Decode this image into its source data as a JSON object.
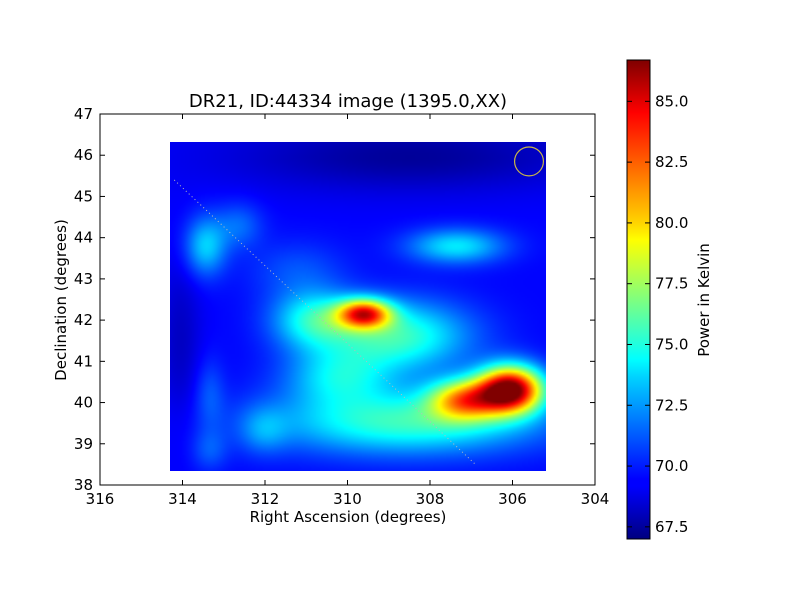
{
  "chart_data": {
    "type": "heatmap",
    "title": "DR21, ID:44334 image (1395.0,XX)",
    "xlabel": "Right Ascension (degrees)",
    "ylabel": "Declination (degrees)",
    "xlim": [
      316,
      304
    ],
    "ylim": [
      38,
      47
    ],
    "x_ticks": [
      316,
      314,
      312,
      310,
      308,
      306,
      304
    ],
    "y_ticks": [
      38,
      39,
      40,
      41,
      42,
      43,
      44,
      45,
      46,
      47
    ],
    "x_tick_labels": [
      "316",
      "314",
      "312",
      "310",
      "308",
      "306",
      "304"
    ],
    "y_tick_labels": [
      "38",
      "39",
      "40",
      "41",
      "42",
      "43",
      "44",
      "45",
      "46",
      "47"
    ],
    "image_extent": {
      "ra": [
        314.25,
        305.25
      ],
      "dec": [
        38.3,
        46.35
      ]
    },
    "colormap": "jet",
    "colorbar": {
      "label": "Power in Kelvin",
      "range": [
        67.0,
        86.7
      ],
      "ticks": [
        67.5,
        70.0,
        72.5,
        75.0,
        77.5,
        80.0,
        82.5,
        85.0
      ],
      "tick_labels": [
        "67.5",
        "70.0",
        "72.5",
        "75.0",
        "77.5",
        "80.0",
        "82.5",
        "85.0"
      ]
    },
    "background_level": 69.5,
    "sources": [
      {
        "ra": 306.1,
        "dec": 40.3,
        "peak": 86.5,
        "sigma_ra": 0.55,
        "sigma_dec": 0.4
      },
      {
        "ra": 307.2,
        "dec": 40.05,
        "peak": 79.0,
        "sigma_ra": 0.6,
        "sigma_dec": 0.35
      },
      {
        "ra": 309.6,
        "dec": 42.15,
        "peak": 81.5,
        "sigma_ra": 0.45,
        "sigma_dec": 0.25
      },
      {
        "ra": 308.8,
        "dec": 41.6,
        "peak": 75.5,
        "sigma_ra": 1.2,
        "sigma_dec": 0.6
      },
      {
        "ra": 310.8,
        "dec": 42.0,
        "peak": 74.5,
        "sigma_ra": 0.7,
        "sigma_dec": 0.5
      },
      {
        "ra": 308.6,
        "dec": 39.5,
        "peak": 75.5,
        "sigma_ra": 2.2,
        "sigma_dec": 0.55
      },
      {
        "ra": 307.4,
        "dec": 43.8,
        "peak": 74.0,
        "sigma_ra": 0.8,
        "sigma_dec": 0.3
      },
      {
        "ra": 313.4,
        "dec": 43.8,
        "peak": 73.5,
        "sigma_ra": 0.35,
        "sigma_dec": 0.5
      },
      {
        "ra": 312.6,
        "dec": 44.3,
        "peak": 71.5,
        "sigma_ra": 0.4,
        "sigma_dec": 0.4
      },
      {
        "ra": 313.3,
        "dec": 40.2,
        "peak": 71.0,
        "sigma_ra": 0.25,
        "sigma_dec": 0.6
      },
      {
        "ra": 312.0,
        "dec": 39.3,
        "peak": 71.5,
        "sigma_ra": 0.4,
        "sigma_dec": 0.4
      },
      {
        "ra": 313.3,
        "dec": 38.8,
        "peak": 71.0,
        "sigma_ra": 0.3,
        "sigma_dec": 0.35
      },
      {
        "ra": 310.2,
        "dec": 40.6,
        "peak": 73.5,
        "sigma_ra": 0.9,
        "sigma_dec": 0.5
      },
      {
        "ra": 311.2,
        "dec": 43.2,
        "peak": 71.0,
        "sigma_ra": 0.8,
        "sigma_dec": 0.5
      }
    ],
    "cold_regions": [
      {
        "ra": 308.5,
        "dec": 46.0,
        "depth": 2.0,
        "sigma_ra": 3.0,
        "sigma_dec": 0.6
      },
      {
        "ra": 314.0,
        "dec": 41.5,
        "depth": 1.2,
        "sigma_ra": 0.35,
        "sigma_dec": 1.5
      }
    ],
    "overlays": {
      "beam_circle": {
        "ra": 305.6,
        "dec": 45.85,
        "radius_deg": 0.35,
        "color": "#c8b44a"
      },
      "dotted_line": {
        "from": [
          314.2,
          45.4
        ],
        "to": [
          306.9,
          38.5
        ],
        "color": "#bbbbbb"
      }
    }
  }
}
